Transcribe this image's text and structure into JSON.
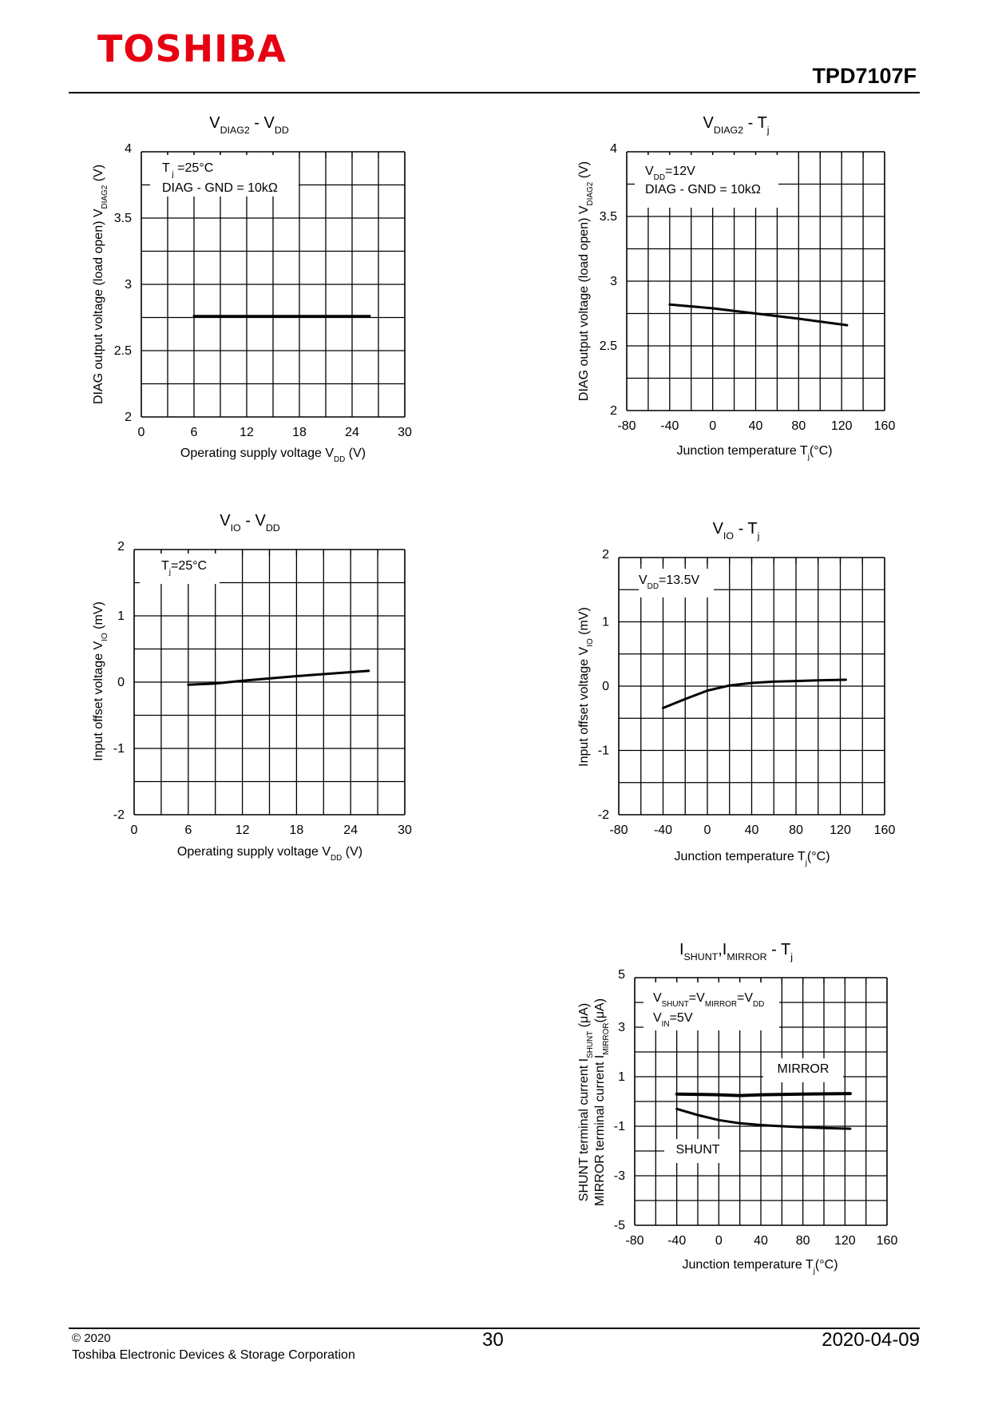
{
  "header": {
    "logo_text": "TOSHIBA",
    "part_number": "TPD7107F"
  },
  "footer": {
    "copyright": "© 2020",
    "company": "Toshiba Electronic Devices & Storage Corporation",
    "page_number": "30",
    "date": "2020-04-09"
  },
  "colors": {
    "logo": "#e60012",
    "line": "#000000",
    "grid": "#000000"
  },
  "chart_data": [
    {
      "type": "line",
      "title": [
        [
          "V",
          ""
        ],
        [
          "DIAG2",
          "sub"
        ],
        [
          " - V",
          ""
        ],
        [
          "DD",
          "sub"
        ]
      ],
      "xlabel": [
        [
          "Operating supply voltage V",
          ""
        ],
        [
          "DD",
          "sub"
        ],
        [
          " (V)",
          ""
        ]
      ],
      "ylabel": [
        [
          "DIAG output voltage (load open) V",
          ""
        ],
        [
          "DIAG2",
          "sub"
        ],
        [
          "  (V)",
          ""
        ]
      ],
      "xlim": [
        0,
        30
      ],
      "ylim": [
        2,
        4
      ],
      "xticks": [
        0,
        6,
        12,
        18,
        24,
        30
      ],
      "yticks": [
        2,
        2.5,
        3,
        3.5,
        4
      ],
      "ytick_labels": [
        "2",
        "2.5",
        "3",
        "3.5",
        "4"
      ],
      "x_divisions": 10,
      "y_divisions": 8,
      "grid": true,
      "annotation": [
        [
          [
            "T",
            ""
          ],
          [
            " j",
            "sub"
          ],
          [
            " =25°C",
            ""
          ]
        ],
        [
          [
            "DIAG - GND = 10kΩ",
            ""
          ]
        ]
      ],
      "series": [
        {
          "x": [
            6,
            26
          ],
          "y": [
            2.76,
            2.76
          ]
        }
      ]
    },
    {
      "type": "line",
      "title": [
        [
          "V",
          ""
        ],
        [
          "DIAG2",
          "sub"
        ],
        [
          " - T",
          ""
        ],
        [
          "j",
          "sub"
        ]
      ],
      "xlabel": [
        [
          "Junction temperature T",
          ""
        ],
        [
          "j",
          "sub"
        ],
        [
          "(°C)",
          ""
        ]
      ],
      "ylabel": [
        [
          "DIAG output voltage (load open) V",
          ""
        ],
        [
          "DIAG2",
          "sub"
        ],
        [
          "  (V)",
          ""
        ]
      ],
      "xlim": [
        -80,
        160
      ],
      "ylim": [
        2,
        4
      ],
      "xticks": [
        -80,
        -40,
        0,
        40,
        80,
        120,
        160
      ],
      "yticks": [
        2,
        2.5,
        3,
        3.5,
        4
      ],
      "ytick_labels": [
        "2",
        "2.5",
        "3",
        "3.5",
        "4"
      ],
      "x_divisions": 12,
      "y_divisions": 8,
      "grid": true,
      "annotation": [
        [
          [
            "V",
            ""
          ],
          [
            "DD",
            "sub"
          ],
          [
            "=12V",
            ""
          ]
        ],
        [
          [
            "DIAG - GND = 10kΩ",
            ""
          ]
        ]
      ],
      "series": [
        {
          "x": [
            -40,
            0,
            40,
            80,
            125
          ],
          "y": [
            2.82,
            2.79,
            2.75,
            2.71,
            2.66
          ]
        }
      ]
    },
    {
      "type": "line",
      "title": [
        [
          "V",
          ""
        ],
        [
          "IO",
          "sub"
        ],
        [
          " - V",
          ""
        ],
        [
          "DD",
          "sub"
        ]
      ],
      "xlabel": [
        [
          "Operating supply voltage V",
          ""
        ],
        [
          "DD",
          "sub"
        ],
        [
          " (V)",
          ""
        ]
      ],
      "ylabel": [
        [
          "Input offset voltage V",
          ""
        ],
        [
          "IO",
          "sub"
        ],
        [
          "  (mV)",
          ""
        ]
      ],
      "xlim": [
        0,
        30
      ],
      "ylim": [
        -2,
        2
      ],
      "xticks": [
        0,
        6,
        12,
        18,
        24,
        30
      ],
      "yticks": [
        -2,
        -1,
        0,
        1,
        2
      ],
      "ytick_labels": [
        "-2",
        "-1",
        "0",
        "1",
        "2"
      ],
      "x_divisions": 10,
      "y_divisions": 8,
      "grid": true,
      "annotation": [
        [
          [
            "T",
            ""
          ],
          [
            "j",
            "sub"
          ],
          [
            "=25°C",
            ""
          ]
        ]
      ],
      "series": [
        {
          "x": [
            6,
            9,
            12,
            18,
            24,
            26
          ],
          "y": [
            -0.04,
            -0.02,
            0.02,
            0.09,
            0.15,
            0.17
          ]
        }
      ]
    },
    {
      "type": "line",
      "title": [
        [
          "V",
          ""
        ],
        [
          "IO",
          "sub"
        ],
        [
          " - T",
          ""
        ],
        [
          "j",
          "sub"
        ]
      ],
      "xlabel": [
        [
          "Junction temperature T",
          ""
        ],
        [
          "j",
          "sub"
        ],
        [
          "(°C)",
          ""
        ]
      ],
      "ylabel": [
        [
          "Input offset voltage V",
          ""
        ],
        [
          "IO",
          "sub"
        ],
        [
          "  (mV)",
          ""
        ]
      ],
      "xlim": [
        -80,
        160
      ],
      "ylim": [
        -2,
        2
      ],
      "xticks": [
        -80,
        -40,
        0,
        40,
        80,
        120,
        160
      ],
      "yticks": [
        -2,
        -1,
        0,
        1,
        2
      ],
      "ytick_labels": [
        "-2",
        "-1",
        "0",
        "1",
        "2"
      ],
      "x_divisions": 12,
      "y_divisions": 8,
      "grid": true,
      "annotation": [
        [
          [
            "V",
            ""
          ],
          [
            "DD",
            "sub"
          ],
          [
            "=13.5V",
            ""
          ]
        ]
      ],
      "series": [
        {
          "x": [
            -40,
            -20,
            0,
            20,
            40,
            60,
            80,
            100,
            125
          ],
          "y": [
            -0.34,
            -0.2,
            -0.07,
            0.01,
            0.05,
            0.07,
            0.08,
            0.09,
            0.1
          ]
        }
      ]
    },
    {
      "type": "line",
      "title": [
        [
          "I",
          ""
        ],
        [
          "SHUNT",
          "sub"
        ],
        [
          ",I",
          ""
        ],
        [
          "MIRROR",
          "sub"
        ],
        [
          " - T",
          ""
        ],
        [
          "j",
          "sub"
        ]
      ],
      "xlabel": [
        [
          "Junction temperature T",
          ""
        ],
        [
          "j",
          "sub"
        ],
        [
          "(°C)",
          ""
        ]
      ],
      "ylabel": [
        [
          "SHUNT terminal current I",
          ""
        ],
        [
          "SHUNT",
          "sub"
        ],
        [
          " (μA)",
          ""
        ]
      ],
      "ylabel2": [
        [
          "MIRROR terminal current I",
          ""
        ],
        [
          "MIRROR",
          "sub"
        ],
        [
          "(μA)",
          ""
        ]
      ],
      "xlim": [
        -80,
        160
      ],
      "ylim": [
        -5,
        5
      ],
      "xticks": [
        -80,
        -40,
        0,
        40,
        80,
        120,
        160
      ],
      "yticks": [
        -5,
        -3,
        -1,
        1,
        3,
        5
      ],
      "ytick_labels": [
        "-5",
        "-3",
        "-1",
        "1",
        "3",
        "5"
      ],
      "x_divisions": 12,
      "y_divisions": 10,
      "grid": true,
      "annotation": [
        [
          [
            "V",
            ""
          ],
          [
            "SHUNT",
            "sub"
          ],
          [
            "=V",
            ""
          ],
          [
            "MIRROR",
            "sub"
          ],
          [
            "=V",
            ""
          ],
          [
            "DD",
            "sub"
          ]
        ],
        [
          [
            "V",
            ""
          ],
          [
            "IN",
            "sub"
          ],
          [
            "=5V",
            ""
          ]
        ]
      ],
      "series": [
        {
          "name": "MIRROR",
          "x": [
            -40,
            0,
            20,
            40,
            80,
            125
          ],
          "y": [
            0.3,
            0.27,
            0.24,
            0.27,
            0.3,
            0.32
          ]
        },
        {
          "name": "SHUNT",
          "x": [
            -40,
            -20,
            0,
            20,
            40,
            60,
            80,
            100,
            125
          ],
          "y": [
            -0.3,
            -0.55,
            -0.75,
            -0.88,
            -0.95,
            -1.0,
            -1.04,
            -1.07,
            -1.1
          ]
        }
      ]
    }
  ]
}
